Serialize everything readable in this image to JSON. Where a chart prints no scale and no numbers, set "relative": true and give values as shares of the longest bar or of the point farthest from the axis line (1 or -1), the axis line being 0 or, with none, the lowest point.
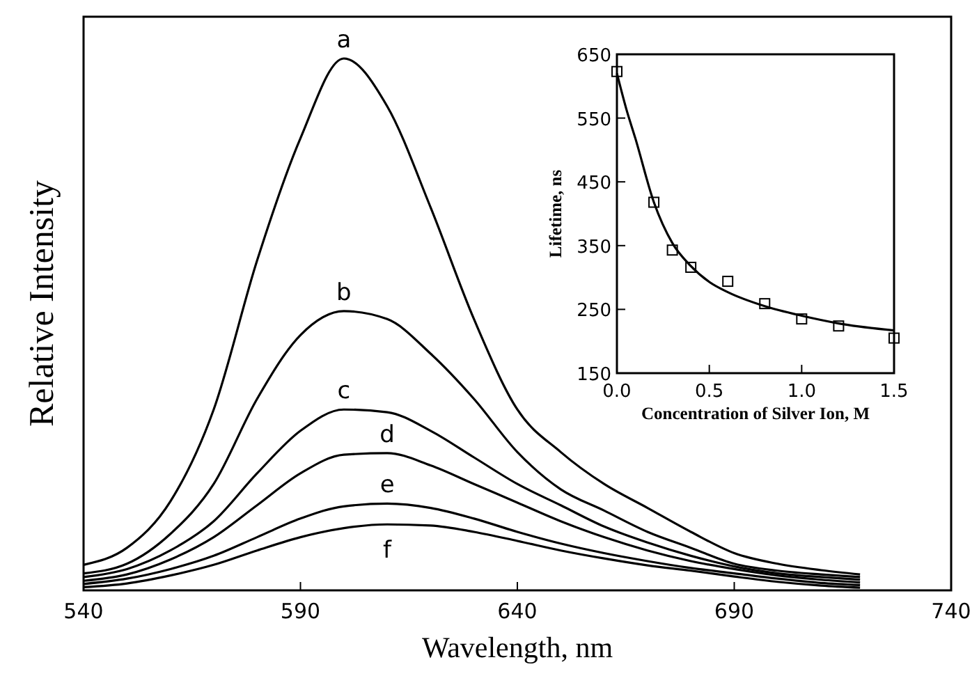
{
  "chart_data": [
    {
      "type": "line",
      "xlabel": "Wavelength,  nm",
      "ylabel": "Relative Intensity",
      "relative": true,
      "xlim": [
        540,
        740
      ],
      "xticks": [
        540,
        590,
        640,
        690,
        740
      ],
      "marker": "none",
      "x": [
        540,
        550,
        560,
        570,
        580,
        590,
        600,
        610,
        620,
        630,
        640,
        650,
        660,
        670,
        680,
        690,
        700,
        710,
        719
      ],
      "series": [
        {
          "name": "a",
          "color": "#000000",
          "values": [
            0.048,
            0.08,
            0.167,
            0.34,
            0.62,
            0.85,
            1.0,
            0.91,
            0.72,
            0.51,
            0.34,
            0.26,
            0.2,
            0.155,
            0.11,
            0.07,
            0.05,
            0.038,
            0.03
          ]
        },
        {
          "name": "b",
          "color": "#000000",
          "values": [
            0.032,
            0.05,
            0.106,
            0.2,
            0.36,
            0.48,
            0.525,
            0.51,
            0.445,
            0.36,
            0.26,
            0.19,
            0.15,
            0.11,
            0.08,
            0.05,
            0.037,
            0.03,
            0.025
          ]
        },
        {
          "name": "c",
          "color": "#000000",
          "values": [
            0.025,
            0.04,
            0.075,
            0.13,
            0.22,
            0.3,
            0.34,
            0.335,
            0.3,
            0.25,
            0.2,
            0.16,
            0.12,
            0.09,
            0.065,
            0.045,
            0.032,
            0.025,
            0.02
          ]
        },
        {
          "name": "d",
          "color": "#000000",
          "values": [
            0.018,
            0.03,
            0.058,
            0.1,
            0.16,
            0.22,
            0.255,
            0.258,
            0.235,
            0.2,
            0.165,
            0.13,
            0.1,
            0.075,
            0.055,
            0.04,
            0.028,
            0.02,
            0.015
          ]
        },
        {
          "name": "e",
          "color": "#000000",
          "values": [
            0.012,
            0.022,
            0.04,
            0.065,
            0.1,
            0.135,
            0.158,
            0.163,
            0.155,
            0.135,
            0.11,
            0.088,
            0.07,
            0.055,
            0.042,
            0.032,
            0.022,
            0.014,
            0.01
          ]
        },
        {
          "name": "f",
          "color": "#000000",
          "values": [
            0.006,
            0.013,
            0.028,
            0.048,
            0.075,
            0.1,
            0.117,
            0.124,
            0.122,
            0.11,
            0.093,
            0.075,
            0.06,
            0.047,
            0.037,
            0.026,
            0.016,
            0.009,
            0.005
          ]
        }
      ]
    },
    {
      "type": "scatter",
      "xlabel": "Concentration of Silver Ion,  M",
      "ylabel": "Lifetime,  ns",
      "xlim": [
        0,
        1.5
      ],
      "xticks": [
        {
          "value": 0,
          "label": "0.0"
        },
        0.5,
        {
          "value": 1,
          "label": "1.0"
        },
        1.5
      ],
      "ylim": [
        150,
        650
      ],
      "yticks": [
        150,
        250,
        350,
        450,
        550,
        650
      ],
      "series": [
        {
          "color": "#000000",
          "marker": "square",
          "x": [
            0,
            0.2,
            0.3,
            0.4,
            0.6,
            0.8,
            1.0,
            1.2,
            1.5
          ],
          "values": [
            623,
            418,
            343,
            316,
            294,
            259,
            235,
            224,
            205
          ]
        },
        {
          "type": "line",
          "color": "#000000",
          "marker": "none",
          "x": [
            0,
            0.05,
            0.1,
            0.2,
            0.3,
            0.4,
            0.5,
            0.6,
            0.8,
            1.0,
            1.2,
            1.5
          ],
          "values": [
            620,
            565,
            518,
            418,
            354,
            318,
            293,
            277,
            255,
            240,
            228,
            217
          ]
        }
      ]
    }
  ]
}
